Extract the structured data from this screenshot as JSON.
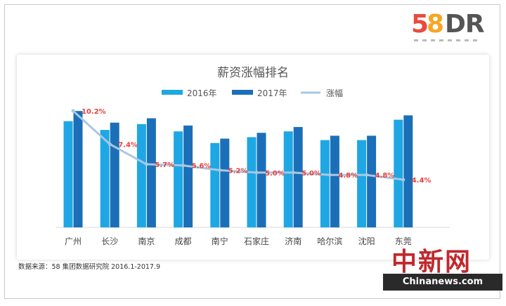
{
  "logo": {
    "text_5": "5",
    "text_8": "8",
    "text_dr": "DR"
  },
  "source_note": "数据来源：58 集团数据研究院 2016.1-2017.9",
  "watermark": {
    "cn": "中新网",
    "en": "Chinanews.com"
  },
  "colors": {
    "bar2016": "#1ea7e4",
    "bar2017": "#1b6fb8",
    "line": "#a9c7e3",
    "label": "#e8403a"
  },
  "chart_data": {
    "type": "bar",
    "title": "薪资涨幅排名",
    "categories": [
      "广州",
      "长沙",
      "南京",
      "成都",
      "南宁",
      "石家庄",
      "济南",
      "哈尔滨",
      "沈阳",
      "东莞"
    ],
    "series": [
      {
        "name": "2016年",
        "type": "bar",
        "values": [
          7300,
          6700,
          7100,
          6600,
          5800,
          6200,
          6600,
          6000,
          6000,
          7400
        ]
      },
      {
        "name": "2017年",
        "type": "bar",
        "values": [
          8000,
          7200,
          7500,
          7000,
          6100,
          6500,
          6900,
          6300,
          6300,
          7700
        ]
      },
      {
        "name": "涨幅",
        "type": "line",
        "values": [
          10.2,
          7.4,
          5.7,
          5.6,
          5.2,
          5.0,
          5.0,
          4.8,
          4.8,
          4.4
        ],
        "labels": [
          "10.2%",
          "7.4%",
          "5.7%",
          "5.6%",
          "5.2%",
          "5.0%",
          "5.0%",
          "4.8%",
          "4.8%",
          "4.4%"
        ]
      }
    ],
    "legend_position": "top-center",
    "grid": false
  }
}
